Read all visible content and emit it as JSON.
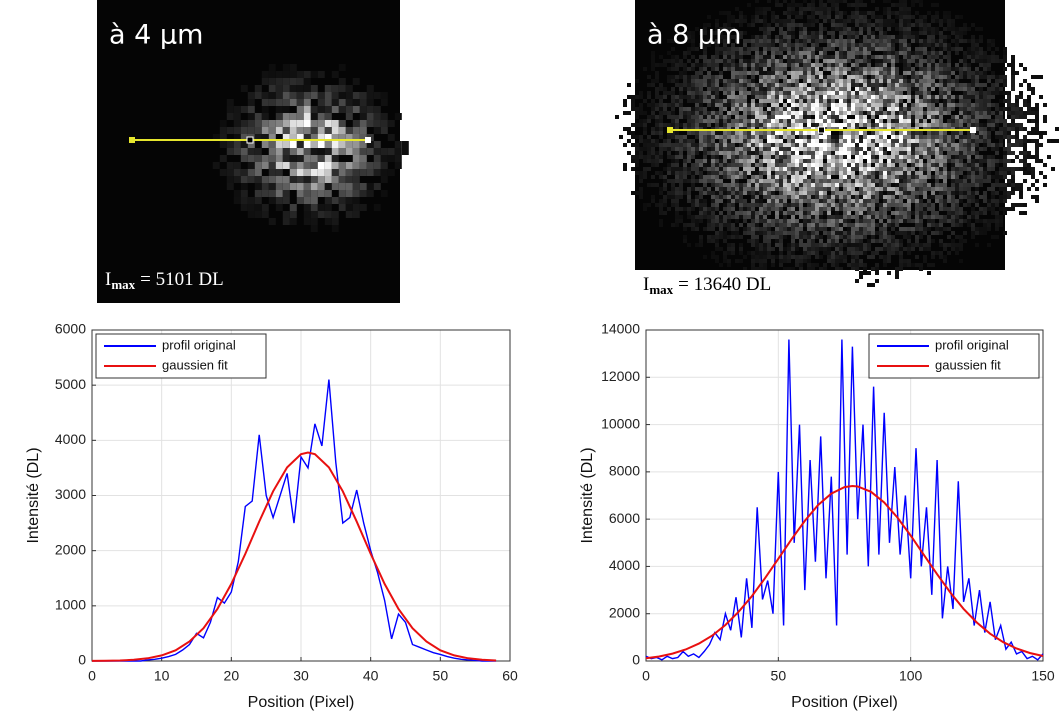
{
  "chart_data": [
    {
      "type": "line",
      "image_label": "à 4 µm",
      "annotation": {
        "base": "I",
        "subscript": "max",
        "text": "= 5101 DL"
      },
      "xlabel": "Position (Pixel)",
      "ylabel": "Intensité (DL)",
      "xlim": [
        0,
        60
      ],
      "xticks": [
        0,
        10,
        20,
        30,
        40,
        50,
        60
      ],
      "ylim": [
        0,
        6000
      ],
      "yticks": [
        0,
        1000,
        2000,
        3000,
        4000,
        5000,
        6000
      ],
      "grid": true,
      "legend": "upper-left",
      "series": [
        {
          "name": "profil original",
          "color": "#0000ff",
          "x": [
            0,
            1,
            2,
            3,
            4,
            5,
            6,
            7,
            8,
            9,
            10,
            11,
            12,
            13,
            14,
            15,
            16,
            17,
            18,
            19,
            20,
            21,
            22,
            23,
            24,
            25,
            26,
            27,
            28,
            29,
            30,
            31,
            32,
            33,
            34,
            35,
            36,
            37,
            38,
            39,
            40,
            41,
            42,
            43,
            44,
            45,
            46,
            47,
            48,
            49,
            50,
            51,
            52,
            53,
            54,
            55,
            56,
            57,
            58
          ],
          "values": [
            0,
            0,
            0,
            0,
            0,
            0,
            0,
            0,
            20,
            30,
            50,
            80,
            120,
            200,
            300,
            500,
            420,
            700,
            1150,
            1050,
            1250,
            1800,
            2800,
            2900,
            4100,
            3000,
            2600,
            3000,
            3400,
            2500,
            3700,
            3500,
            4300,
            3900,
            5101,
            3600,
            2500,
            2600,
            3100,
            2500,
            2000,
            1600,
            1100,
            400,
            850,
            700,
            300,
            250,
            200,
            150,
            120,
            80,
            50,
            30,
            20,
            10,
            0,
            0,
            0
          ]
        },
        {
          "name": "gaussien fit",
          "color": "#e81010",
          "x": [
            0,
            2,
            4,
            6,
            8,
            10,
            12,
            14,
            16,
            18,
            20,
            22,
            24,
            26,
            28,
            30,
            31,
            32,
            34,
            36,
            38,
            40,
            42,
            44,
            46,
            48,
            50,
            52,
            54,
            56,
            58
          ],
          "values": [
            1,
            4,
            9,
            22,
            49,
            101,
            194,
            353,
            595,
            942,
            1398,
            1942,
            2527,
            3077,
            3510,
            3749,
            3780,
            3749,
            3510,
            3077,
            2527,
            1942,
            1398,
            942,
            595,
            353,
            194,
            101,
            49,
            22,
            9
          ]
        }
      ]
    },
    {
      "type": "line",
      "image_label": "à 8 µm",
      "annotation": {
        "base": "I",
        "subscript": "max",
        "text": "= 13640 DL"
      },
      "xlabel": "Position (Pixel)",
      "ylabel": "Intensité (DL)",
      "xlim": [
        0,
        150
      ],
      "xticks": [
        0,
        50,
        100,
        150
      ],
      "ylim": [
        0,
        14000
      ],
      "yticks": [
        0,
        2000,
        4000,
        6000,
        8000,
        10000,
        12000,
        14000
      ],
      "grid": true,
      "legend": "upper-right",
      "series": [
        {
          "name": "profil original",
          "color": "#0000ff",
          "x": [
            0,
            2,
            4,
            6,
            8,
            10,
            12,
            14,
            16,
            18,
            20,
            22,
            24,
            26,
            28,
            30,
            32,
            34,
            36,
            38,
            40,
            42,
            44,
            46,
            48,
            50,
            52,
            54,
            56,
            58,
            60,
            62,
            64,
            66,
            68,
            70,
            72,
            74,
            76,
            78,
            80,
            82,
            84,
            86,
            88,
            90,
            92,
            94,
            96,
            98,
            100,
            102,
            104,
            106,
            108,
            110,
            112,
            114,
            116,
            118,
            120,
            122,
            124,
            126,
            128,
            130,
            132,
            134,
            136,
            138,
            140,
            142,
            144,
            146,
            148,
            150
          ],
          "values": [
            200,
            100,
            150,
            50,
            200,
            100,
            150,
            400,
            200,
            300,
            150,
            400,
            700,
            1200,
            900,
            2000,
            1300,
            2700,
            1000,
            3500,
            1400,
            6500,
            2600,
            3400,
            2000,
            8000,
            1500,
            13600,
            5000,
            10000,
            3000,
            8500,
            4200,
            9500,
            3500,
            7800,
            1500,
            13600,
            4500,
            13300,
            6000,
            10000,
            4000,
            11600,
            4500,
            10500,
            5000,
            8200,
            4500,
            7000,
            3500,
            9000,
            4000,
            6500,
            2800,
            8500,
            1800,
            4000,
            2200,
            7600,
            2500,
            3500,
            1500,
            3000,
            1200,
            2500,
            900,
            1500,
            500,
            800,
            300,
            400,
            100,
            200,
            50,
            300
          ]
        },
        {
          "name": "gaussien fit",
          "color": "#e81010",
          "x": [
            0,
            5,
            10,
            15,
            20,
            25,
            30,
            35,
            40,
            45,
            50,
            55,
            60,
            65,
            70,
            75,
            78,
            80,
            85,
            90,
            95,
            100,
            105,
            110,
            115,
            120,
            125,
            130,
            135,
            140,
            145,
            150
          ],
          "values": [
            114,
            192,
            311,
            486,
            736,
            1073,
            1524,
            2079,
            2746,
            3508,
            4322,
            5150,
            5927,
            6593,
            7082,
            7354,
            7400,
            7380,
            7156,
            6704,
            6068,
            5306,
            4488,
            3670,
            2894,
            2205,
            1628,
            1156,
            797,
            529,
            340,
            211
          ]
        }
      ]
    }
  ]
}
